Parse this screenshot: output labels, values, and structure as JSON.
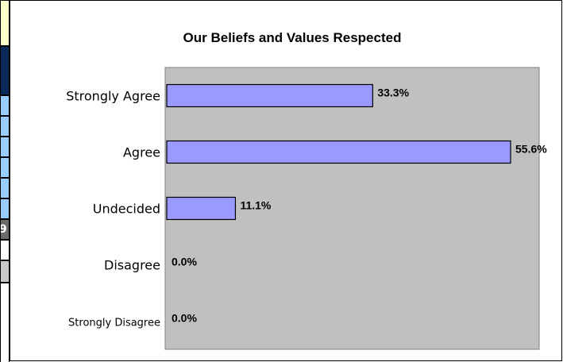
{
  "colors": {
    "plot_background": "#c0c0c0",
    "bar_fill": "#9999ff",
    "bar_stroke": "#000000",
    "sliver_header": "#ffffcc",
    "sliver_dark": "#0b2a5a",
    "sliver_blue": "#99ccff",
    "sliver_gray": "#6b6b6b",
    "sliver_light": "#c8c8c8"
  },
  "sliver_text": "9",
  "chart_data": {
    "type": "bar",
    "orientation": "horizontal",
    "title": "Our Beliefs and Values Respected",
    "categories": [
      "Strongly Agree",
      "Agree",
      "Undecided",
      "Disagree",
      "Strongly Disagree"
    ],
    "values": [
      33.3,
      55.6,
      11.1,
      0.0,
      0.0
    ],
    "data_labels": [
      "33.3%",
      "55.6%",
      "11.1%",
      "0.0%",
      "0.0%"
    ],
    "xlim": [
      0,
      60
    ],
    "grid": false,
    "legend": "none",
    "unit": "%"
  }
}
